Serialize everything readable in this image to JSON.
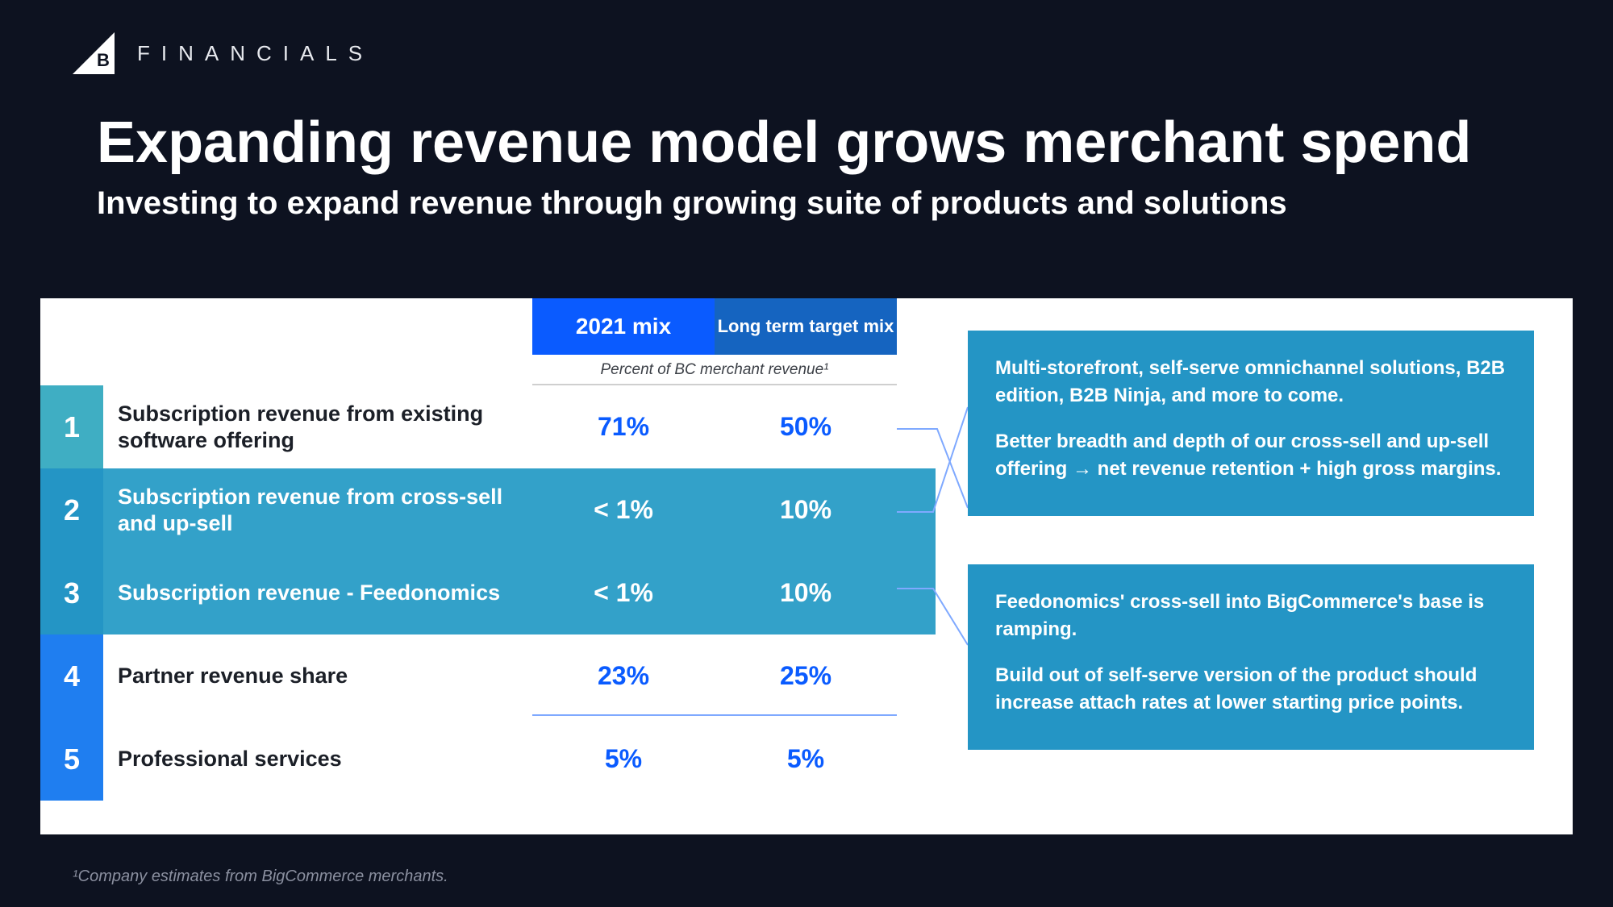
{
  "section_label": "FINANCIALS",
  "title": "Expanding revenue model grows merchant spend",
  "subtitle": "Investing to expand revenue through growing suite of products and solutions",
  "table": {
    "col1_header": "2021 mix",
    "col2_header": "Long term target mix",
    "sub_caption": "Percent of BC merchant revenue¹",
    "col1_header_bg": "#0a5bff",
    "col2_header_bg": "#1564c0",
    "value_color_white_row": "#0a5bff",
    "value_color_teal_row": "#ffffff",
    "rows": [
      {
        "n": "1",
        "label": "Subscription revenue from existing software offering",
        "v1": "71%",
        "v2": "50%",
        "num_bg": "#3faec3",
        "row_style": "white"
      },
      {
        "n": "2",
        "label": "Subscription revenue from cross-sell and up-sell",
        "v1": "< 1%",
        "v2": "10%",
        "num_bg": "#2495c5",
        "row_style": "teal"
      },
      {
        "n": "3",
        "label": "Subscription revenue - Feedonomics",
        "v1": "< 1%",
        "v2": "10%",
        "num_bg": "#2495c5",
        "row_style": "teal"
      },
      {
        "n": "4",
        "label": "Partner revenue share",
        "v1": "23%",
        "v2": "25%",
        "num_bg": "#1f7ef0",
        "row_style": "white"
      },
      {
        "n": "5",
        "label": "Professional services",
        "v1": "5%",
        "v2": "5%",
        "num_bg": "#1f7ef0",
        "row_style": "white"
      }
    ]
  },
  "callouts": {
    "c1_p1": "Multi-storefront, self-serve omnichannel solutions, B2B edition, B2B Ninja, and more to come.",
    "c1_p2": "Better breadth and depth of our cross-sell and up-sell offering → net revenue retention + high gross margins.",
    "c2_p1": "Feedonomics' cross-sell into BigCommerce's base is ramping.",
    "c2_p2": "Build out of self-serve version of the product should increase attach rates at lower starting price points.",
    "bg_color": "#2495c5"
  },
  "footnote": "¹Company estimates from BigCommerce merchants.",
  "colors": {
    "page_bg": "#0d1220",
    "content_bg": "#ffffff",
    "divider": "#7fa9ff"
  }
}
